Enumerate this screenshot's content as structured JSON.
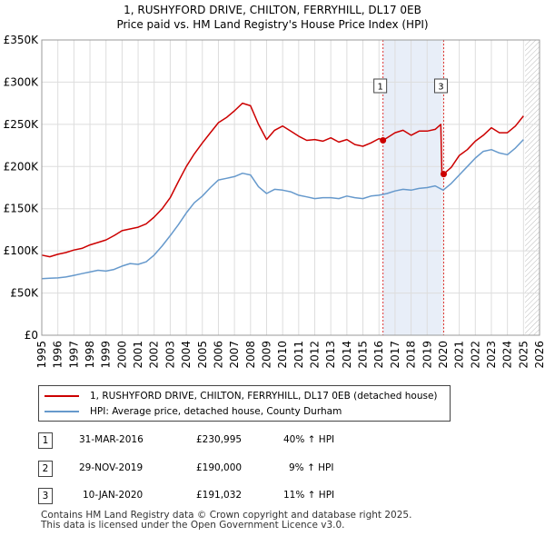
{
  "title_line1": "1, RUSHYFORD DRIVE, CHILTON, FERRYHILL, DL17 0EB",
  "title_line2": "Price paid vs. HM Land Registry's House Price Index (HPI)",
  "chart_data": {
    "type": "line",
    "xlim": [
      1995,
      2026
    ],
    "ylim": [
      0,
      350000
    ],
    "yticks": [
      0,
      50000,
      100000,
      150000,
      200000,
      250000,
      300000,
      350000
    ],
    "ytick_labels": [
      "£0",
      "£50K",
      "£100K",
      "£150K",
      "£200K",
      "£250K",
      "£300K",
      "£350K"
    ],
    "xtick_labels": [
      "1995",
      "1996",
      "1997",
      "1998",
      "1999",
      "2000",
      "2001",
      "2002",
      "2003",
      "2004",
      "2005",
      "2006",
      "2007",
      "2008",
      "2009",
      "2010",
      "2011",
      "2012",
      "2013",
      "2014",
      "2015",
      "2016",
      "2017",
      "2018",
      "2019",
      "2020",
      "2021",
      "2022",
      "2023",
      "2024",
      "2025",
      "2026"
    ],
    "grid": true,
    "highlight_region": [
      2016.25,
      2019.92
    ],
    "hatched_after": 2025.1,
    "series": [
      {
        "name": "1, RUSHYFORD DRIVE, CHILTON, FERRYHILL, DL17 0EB (detached house)",
        "color": "#cc0000",
        "x": [
          1995.0,
          1995.5,
          1996.0,
          1996.5,
          1997.0,
          1997.5,
          1998.0,
          1998.5,
          1999.0,
          1999.5,
          2000.0,
          2000.5,
          2001.0,
          2001.5,
          2002.0,
          2002.5,
          2003.0,
          2003.5,
          2004.0,
          2004.5,
          2005.0,
          2005.5,
          2006.0,
          2006.5,
          2007.0,
          2007.5,
          2008.0,
          2008.5,
          2009.0,
          2009.5,
          2010.0,
          2010.5,
          2011.0,
          2011.5,
          2012.0,
          2012.5,
          2013.0,
          2013.5,
          2014.0,
          2014.5,
          2015.0,
          2015.5,
          2016.0,
          2016.25,
          2016.5,
          2017.0,
          2017.5,
          2018.0,
          2018.5,
          2019.0,
          2019.5,
          2019.85,
          2019.92,
          2020.03,
          2020.5,
          2021.0,
          2021.5,
          2022.0,
          2022.5,
          2023.0,
          2023.5,
          2024.0,
          2024.5,
          2025.0
        ],
        "y": [
          95000,
          93000,
          96000,
          98000,
          101000,
          103000,
          107000,
          110000,
          113000,
          118000,
          124000,
          126000,
          128000,
          132000,
          140000,
          150000,
          163000,
          182000,
          200000,
          215000,
          228000,
          240000,
          252000,
          258000,
          266000,
          275000,
          272000,
          250000,
          232000,
          243000,
          248000,
          242000,
          236000,
          231000,
          232000,
          230000,
          234000,
          229000,
          232000,
          226000,
          224000,
          228000,
          233000,
          230995,
          234000,
          240000,
          243000,
          237000,
          242000,
          242000,
          244000,
          250000,
          190000,
          191032,
          199000,
          213000,
          220000,
          230000,
          237000,
          246000,
          240000,
          240000,
          248000,
          260000
        ]
      },
      {
        "name": "HPI: Average price, detached house, County Durham",
        "color": "#6699cc",
        "x": [
          1995.0,
          1995.5,
          1996.0,
          1996.5,
          1997.0,
          1997.5,
          1998.0,
          1998.5,
          1999.0,
          1999.5,
          2000.0,
          2000.5,
          2001.0,
          2001.5,
          2002.0,
          2002.5,
          2003.0,
          2003.5,
          2004.0,
          2004.5,
          2005.0,
          2005.5,
          2006.0,
          2006.5,
          2007.0,
          2007.5,
          2008.0,
          2008.5,
          2009.0,
          2009.5,
          2010.0,
          2010.5,
          2011.0,
          2011.5,
          2012.0,
          2012.5,
          2013.0,
          2013.5,
          2014.0,
          2014.5,
          2015.0,
          2015.5,
          2016.0,
          2016.5,
          2017.0,
          2017.5,
          2018.0,
          2018.5,
          2019.0,
          2019.5,
          2020.0,
          2020.5,
          2021.0,
          2021.5,
          2022.0,
          2022.5,
          2023.0,
          2023.5,
          2024.0,
          2024.5,
          2025.0
        ],
        "y": [
          67000,
          67500,
          68000,
          69000,
          71000,
          73000,
          75000,
          77000,
          76000,
          78000,
          82000,
          85000,
          84000,
          87000,
          95000,
          106000,
          118000,
          131000,
          145000,
          157000,
          165000,
          175000,
          184000,
          186000,
          188000,
          192000,
          190000,
          176000,
          168000,
          173000,
          172000,
          170000,
          166000,
          164000,
          162000,
          163000,
          163000,
          162000,
          165000,
          163000,
          162000,
          165000,
          166000,
          168000,
          171000,
          173000,
          172000,
          174000,
          175000,
          177000,
          172000,
          180000,
          190000,
          200000,
          210000,
          218000,
          220000,
          216000,
          214000,
          222000,
          232000
        ]
      }
    ],
    "transactions": [
      {
        "label": "1",
        "x": 2016.25,
        "y": 230995
      },
      {
        "label": "3",
        "x": 2020.03,
        "y": 191032
      }
    ],
    "marker_labels_shown": [
      "1",
      "3"
    ]
  },
  "legend": {
    "series1": "1, RUSHYFORD DRIVE, CHILTON, FERRYHILL, DL17 0EB (detached house)",
    "series2": "HPI: Average price, detached house, County Durham"
  },
  "transactions_table": [
    {
      "num": "1",
      "date": "31-MAR-2016",
      "price": "£230,995",
      "hpi": "40% ↑ HPI"
    },
    {
      "num": "2",
      "date": "29-NOV-2019",
      "price": "£190,000",
      "hpi": "9% ↑ HPI"
    },
    {
      "num": "3",
      "date": "10-JAN-2020",
      "price": "£191,032",
      "hpi": "11% ↑ HPI"
    }
  ],
  "footer_line1": "Contains HM Land Registry data © Crown copyright and database right 2025.",
  "footer_line2": "This data is licensed under the Open Government Licence v3.0."
}
